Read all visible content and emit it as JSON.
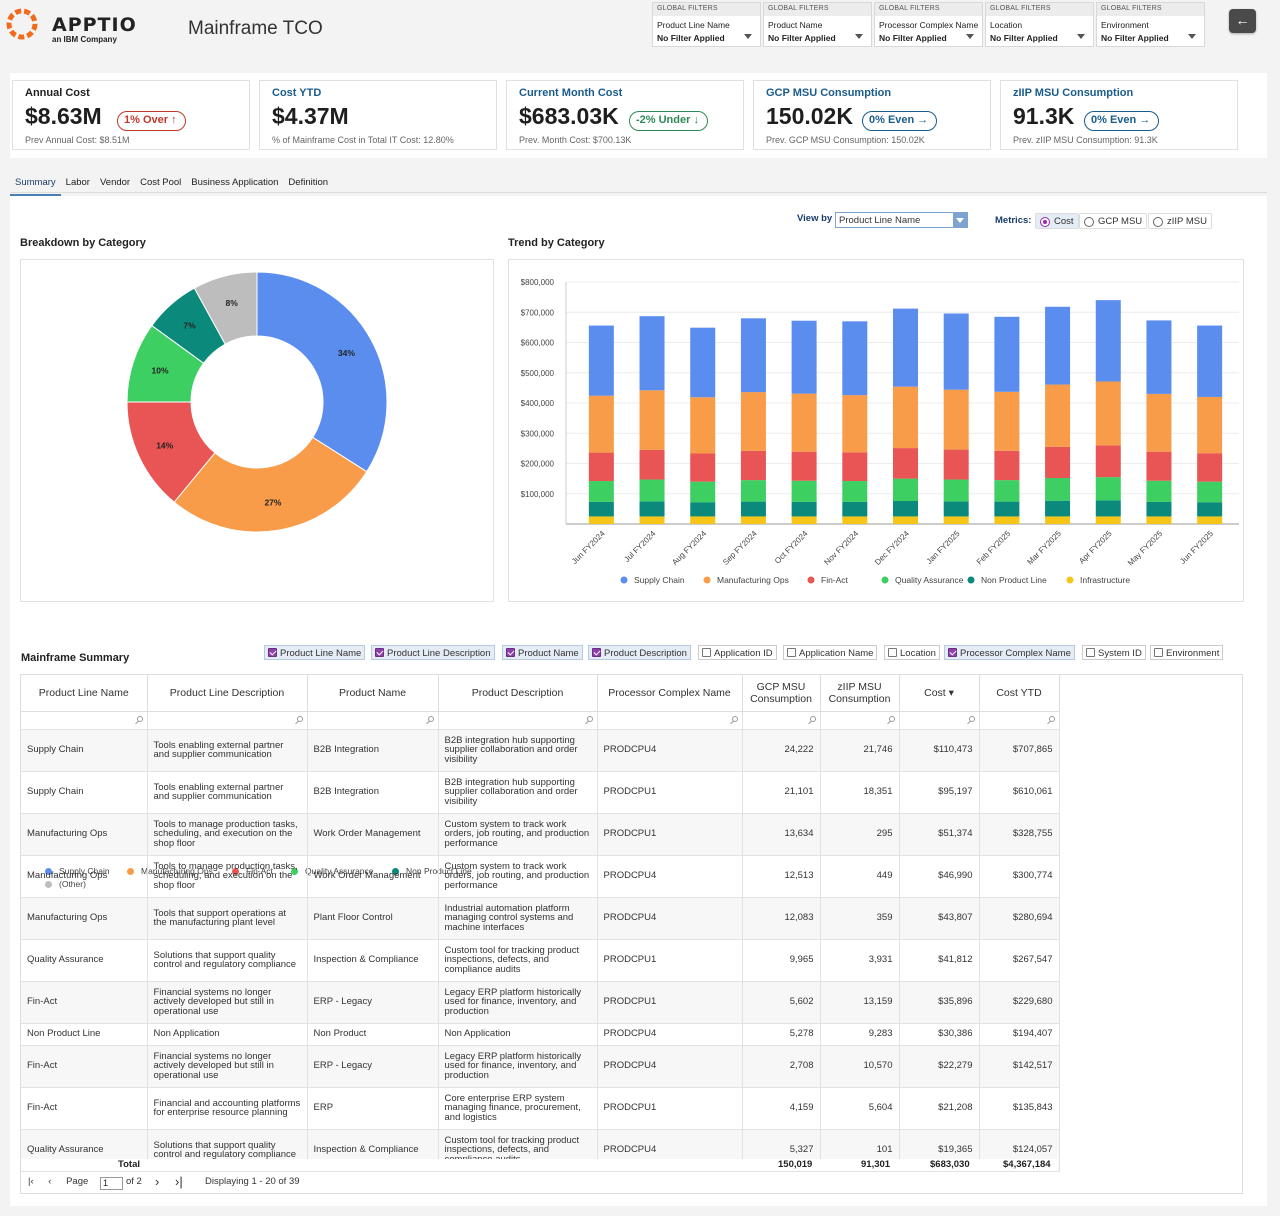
{
  "header": {
    "logo_text": "APPTIO",
    "logo_sub": "an IBM Company",
    "title": "Mainframe TCO",
    "back_icon": "arrow-left-icon"
  },
  "filters": [
    {
      "head": "GLOBAL FILTERS",
      "name": "Product Line Name",
      "value": "No Filter Applied"
    },
    {
      "head": "GLOBAL FILTERS",
      "name": "Product Name",
      "value": "No Filter Applied"
    },
    {
      "head": "GLOBAL FILTERS",
      "name": "Processor Complex Name",
      "value": "No Filter Applied"
    },
    {
      "head": "GLOBAL FILTERS",
      "name": "Location",
      "value": "No Filter Applied"
    },
    {
      "head": "GLOBAL FILTERS",
      "name": "Environment",
      "value": "No Filter Applied"
    }
  ],
  "kpis": [
    {
      "title": "Annual Cost",
      "value": "$8.63M",
      "badge": "1% Over ↑",
      "sub": "Prev Annual Cost: $8.51M",
      "badge_type": "red"
    },
    {
      "title": "Cost YTD",
      "value": "$4.37M",
      "badge": "",
      "sub": "% of Mainframe Cost in Total IT Cost: 12.80%",
      "badge_type": ""
    },
    {
      "title": "Current Month Cost",
      "value": "$683.03K",
      "badge": "-2% Under ↓",
      "sub": "Prev. Month Cost: $700.13K",
      "badge_type": "green"
    },
    {
      "title": "GCP MSU Consumption",
      "value": "150.02K",
      "badge": "0% Even →",
      "sub": "Prev. GCP MSU Consumption: 150.02K",
      "badge_type": "teal"
    },
    {
      "title": "zIIP MSU Consumption",
      "value": "91.3K",
      "badge": "0% Even →",
      "sub": "Prev. zIIP MSU Consumption: 91.3K",
      "badge_type": "teal"
    }
  ],
  "tabs": [
    "Summary",
    "Labor",
    "Vendor",
    "Cost Pool",
    "Business Application",
    "Definition"
  ],
  "view_by": {
    "label": "View by",
    "value": "Product Line Name"
  },
  "metrics": {
    "label": "Metrics:",
    "options": [
      "Cost",
      "GCP MSU",
      "zIIP MSU"
    ],
    "selected": "Cost"
  },
  "breakdown": {
    "title": "Breakdown by Category",
    "chart_data": {
      "type": "pie",
      "slices": [
        {
          "label": "Supply Chain",
          "value": 34,
          "color": "#5b8def"
        },
        {
          "label": "Manufacturing Ops",
          "value": 27,
          "color": "#f89c4a"
        },
        {
          "label": "Fin-Act",
          "value": 14,
          "color": "#e95454"
        },
        {
          "label": "Quality Assurance",
          "value": 10,
          "color": "#3ecf62"
        },
        {
          "label": "Non Product Line",
          "value": 7,
          "color": "#0b8a7c"
        },
        {
          "label": "(Other)",
          "value": 8,
          "color": "#bdbdbd"
        }
      ]
    }
  },
  "trend": {
    "title": "Trend by Category",
    "chart_data": {
      "type": "bar",
      "stacked": true,
      "categories": [
        "Jun FY2024",
        "Jul FY2024",
        "Aug FY2024",
        "Sep FY2024",
        "Oct FY2024",
        "Nov FY2024",
        "Dec FY2024",
        "Jan FY2025",
        "Feb FY2025",
        "Mar FY2025",
        "Apr FY2025",
        "May FY2025",
        "Jun FY2025"
      ],
      "ylim": [
        0,
        800000
      ],
      "yticks": [
        "$100,000",
        "$200,000",
        "$300,000",
        "$400,000",
        "$500,000",
        "$600,000",
        "$700,000",
        "$800,000"
      ],
      "series": [
        {
          "name": "Infrastructure",
          "color": "#f5c518",
          "values": [
            25000,
            25000,
            25000,
            25000,
            25000,
            25000,
            25000,
            25000,
            25000,
            25000,
            25000,
            25000,
            25000
          ]
        },
        {
          "name": "Non Product Line",
          "color": "#0b8a7c",
          "values": [
            48000,
            50000,
            47000,
            49000,
            48000,
            48000,
            51000,
            50000,
            49000,
            52000,
            53000,
            48000,
            47000
          ]
        },
        {
          "name": "Quality Assurance",
          "color": "#3ecf62",
          "values": [
            69000,
            72000,
            68000,
            71000,
            70000,
            69000,
            74000,
            72000,
            71000,
            75000,
            77000,
            70000,
            68000
          ]
        },
        {
          "name": "Fin-Act",
          "color": "#e95454",
          "values": [
            94000,
            98000,
            93000,
            97000,
            96000,
            95000,
            101000,
            99000,
            97000,
            103000,
            105000,
            96000,
            94000
          ]
        },
        {
          "name": "Manufacturing Ops",
          "color": "#f89c4a",
          "values": [
            188000,
            197000,
            186000,
            194000,
            192000,
            189000,
            203000,
            198000,
            195000,
            206000,
            211000,
            191000,
            186000
          ]
        },
        {
          "name": "Supply Chain",
          "color": "#5b8def",
          "values": [
            232000,
            245000,
            230000,
            244000,
            241000,
            244000,
            258000,
            252000,
            248000,
            257000,
            269000,
            243000,
            236000
          ]
        }
      ]
    },
    "legend": [
      "Supply Chain",
      "Manufacturing Ops",
      "Fin-Act",
      "Quality Assurance",
      "Non Product Line",
      "Infrastructure"
    ]
  },
  "summary": {
    "title": "Mainframe Summary",
    "toggles": [
      {
        "label": "Product Line Name",
        "on": true
      },
      {
        "label": "Product Line Description",
        "on": true
      },
      {
        "label": "Product Name",
        "on": true
      },
      {
        "label": "Product Description",
        "on": true
      },
      {
        "label": "Application ID",
        "on": false
      },
      {
        "label": "Application Name",
        "on": false
      },
      {
        "label": "Location",
        "on": false
      },
      {
        "label": "Processor Complex Name",
        "on": true
      },
      {
        "label": "System ID",
        "on": false
      },
      {
        "label": "Environment",
        "on": false
      }
    ],
    "columns": [
      "Product Line Name",
      "Product Line Description",
      "Product Name",
      "Product Description",
      "Processor Complex Name",
      "GCP MSU Consumption",
      "zIIP MSU Consumption",
      "Cost ▾",
      "Cost YTD"
    ],
    "rows": [
      [
        "Supply Chain",
        "Tools enabling external partner and supplier communication",
        "B2B Integration",
        "B2B integration hub supporting supplier collaboration and order visibility",
        "PRODCPU4",
        "24,222",
        "21,746",
        "$110,473",
        "$707,865"
      ],
      [
        "Supply Chain",
        "Tools enabling external partner and supplier communication",
        "B2B Integration",
        "B2B integration hub supporting supplier collaboration and order visibility",
        "PRODCPU1",
        "21,101",
        "18,351",
        "$95,197",
        "$610,061"
      ],
      [
        "Manufacturing Ops",
        "Tools to manage production tasks, scheduling, and execution on the shop floor",
        "Work Order Management",
        "Custom system to track work orders, job routing, and production performance",
        "PRODCPU1",
        "13,634",
        "295",
        "$51,374",
        "$328,755"
      ],
      [
        "Manufacturing Ops",
        "Tools to manage production tasks, scheduling, and execution on the shop floor",
        "Work Order Management",
        "Custom system to track work orders, job routing, and production performance",
        "PRODCPU4",
        "12,513",
        "449",
        "$46,990",
        "$300,774"
      ],
      [
        "Manufacturing Ops",
        "Tools that support operations at the manufacturing plant level",
        "Plant Floor Control",
        "Industrial automation platform managing control systems and machine interfaces",
        "PRODCPU4",
        "12,083",
        "359",
        "$43,807",
        "$280,694"
      ],
      [
        "Quality Assurance",
        "Solutions that support quality control and regulatory compliance",
        "Inspection & Compliance",
        "Custom tool for tracking product inspections, defects, and compliance audits",
        "PRODCPU1",
        "9,965",
        "3,931",
        "$41,812",
        "$267,547"
      ],
      [
        "Fin-Act",
        "Financial systems no longer actively developed but still in operational use",
        "ERP - Legacy",
        "Legacy ERP platform historically used for finance, inventory, and production",
        "PRODCPU1",
        "5,602",
        "13,159",
        "$35,896",
        "$229,680"
      ],
      [
        "Non Product Line",
        "Non Application",
        "Non Product",
        "Non Application",
        "PRODCPU4",
        "5,278",
        "9,283",
        "$30,386",
        "$194,407"
      ],
      [
        "Fin-Act",
        "Financial systems no longer actively developed but still in operational use",
        "ERP - Legacy",
        "Legacy ERP platform historically used for finance, inventory, and production",
        "PRODCPU4",
        "2,708",
        "10,570",
        "$22,279",
        "$142,517"
      ],
      [
        "Fin-Act",
        "Financial and accounting platforms for enterprise resource planning",
        "ERP",
        "Core enterprise ERP system managing finance, procurement, and logistics",
        "PRODCPU1",
        "4,159",
        "5,604",
        "$21,208",
        "$135,843"
      ],
      [
        "Quality Assurance",
        "Solutions that support quality control and regulatory compliance",
        "Inspection & Compliance",
        "Custom tool for tracking product inspections, defects, and compliance audits",
        "PRODCPU4",
        "5,327",
        "101",
        "$19,365",
        "$124,057"
      ]
    ],
    "total": {
      "label": "Total",
      "gcp": "150,019",
      "ziip": "91,301",
      "cost": "$683,030",
      "ytd": "$4,367,184"
    },
    "pager": {
      "page_label": "Page",
      "page": "1",
      "of": "of 2",
      "display": "Displaying 1 - 20 of 39"
    }
  }
}
